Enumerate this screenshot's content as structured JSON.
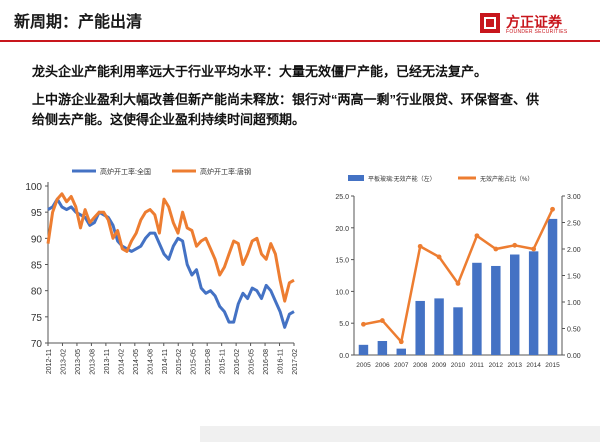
{
  "slide": {
    "title": "新周期：产能出清",
    "paragraph1": "龙头企业产能利用率远大于行业平均水平：大量无效僵尸产能，已经无法复产。",
    "paragraph2_line1": "上中游企业盈利大幅改善但新产能尚未释放：银行对“两高一剩”行业限贷、环保督查、供",
    "paragraph2_line2": "给侧去产能。这使得企业盈利持续时间超预期。"
  },
  "logo": {
    "name_cn": "方正证券",
    "name_en": "FOUNDER SECURITIES"
  },
  "colors": {
    "accent": "#c8161d",
    "blue": "#4472c4",
    "orange": "#ed7d31"
  },
  "chart_data": [
    {
      "type": "line",
      "series": [
        {
          "name": "高炉开工率:全国",
          "color": "#4472c4",
          "values": [
            95.5,
            96.0,
            97.5,
            96.0,
            95.5,
            96.0,
            95.0,
            94.5,
            94.0,
            92.5,
            93.0,
            95.0,
            94.5,
            94.0,
            92.5,
            89.5,
            88.5,
            88.0,
            87.5,
            88.0,
            88.5,
            90.0,
            91.0,
            91.0,
            89.0,
            87.0,
            86.0,
            88.5,
            90.0,
            89.5,
            85.0,
            83.0,
            84.0,
            80.5,
            79.5,
            80.0,
            79.0,
            77.0,
            76.0,
            74.0,
            74.0,
            77.5,
            79.5,
            78.5,
            80.5,
            80.0,
            78.5,
            81.0,
            80.0,
            78.0,
            76.0,
            73.0,
            75.5,
            76.0
          ]
        },
        {
          "name": "高炉开工率:唐钢",
          "color": "#ed7d31",
          "values": [
            89.0,
            95.0,
            97.5,
            98.5,
            97.0,
            98.0,
            96.0,
            92.0,
            95.5,
            93.0,
            94.0,
            95.0,
            95.0,
            93.5,
            90.0,
            91.5,
            88.0,
            87.5,
            89.5,
            91.0,
            93.5,
            95.0,
            95.5,
            94.5,
            91.0,
            97.5,
            96.0,
            93.0,
            91.0,
            95.0,
            92.0,
            91.5,
            88.5,
            89.5,
            90.0,
            88.0,
            86.0,
            83.0,
            84.5,
            87.0,
            89.5,
            89.0,
            85.0,
            87.0,
            89.5,
            90.0,
            87.0,
            86.0,
            89.0,
            87.0,
            82.0,
            78.0,
            81.5,
            82.0
          ]
        }
      ],
      "x_tick_labels": [
        "2012-11",
        "2013-02",
        "2013-05",
        "2013-08",
        "2013-11",
        "2014-02",
        "2014-05",
        "2014-08",
        "2014-11",
        "2015-02",
        "2015-05",
        "2015-08",
        "2015-11",
        "2016-02",
        "2016-05",
        "2016-08",
        "2016-11",
        "2017-02"
      ],
      "y_ticks": [
        "70",
        "75",
        "80",
        "85",
        "90",
        "95",
        "100"
      ],
      "ylim": [
        70,
        100
      ],
      "legend_position": "top",
      "grid": false
    },
    {
      "type": "bar+line",
      "categories": [
        "2005",
        "2006",
        "2007",
        "2008",
        "2009",
        "2010",
        "2011",
        "2012",
        "2013",
        "2014",
        "2015"
      ],
      "series": [
        {
          "name": "平板玻璃:无效产能（左）",
          "type": "bar",
          "axis": "left",
          "color": "#4472c4",
          "values": [
            1.6,
            2.2,
            1.0,
            8.5,
            8.9,
            7.5,
            14.5,
            14.0,
            15.8,
            16.3,
            21.4
          ]
        },
        {
          "name": "无效产能占比（%）",
          "type": "line",
          "axis": "right",
          "color": "#ed7d31",
          "values": [
            0.58,
            0.65,
            0.25,
            2.05,
            1.85,
            1.35,
            2.25,
            2.0,
            2.07,
            2.0,
            2.75
          ]
        }
      ],
      "y_ticks_left": [
        "0.0",
        "5.0",
        "10.0",
        "15.0",
        "20.0",
        "25.0"
      ],
      "y_ticks_right": [
        "0.00",
        "0.50",
        "1.00",
        "1.50",
        "2.00",
        "2.50",
        "3.00"
      ],
      "ylim_left": [
        0,
        25
      ],
      "ylim_right": [
        0,
        3
      ],
      "legend_position": "top",
      "grid": false
    }
  ]
}
